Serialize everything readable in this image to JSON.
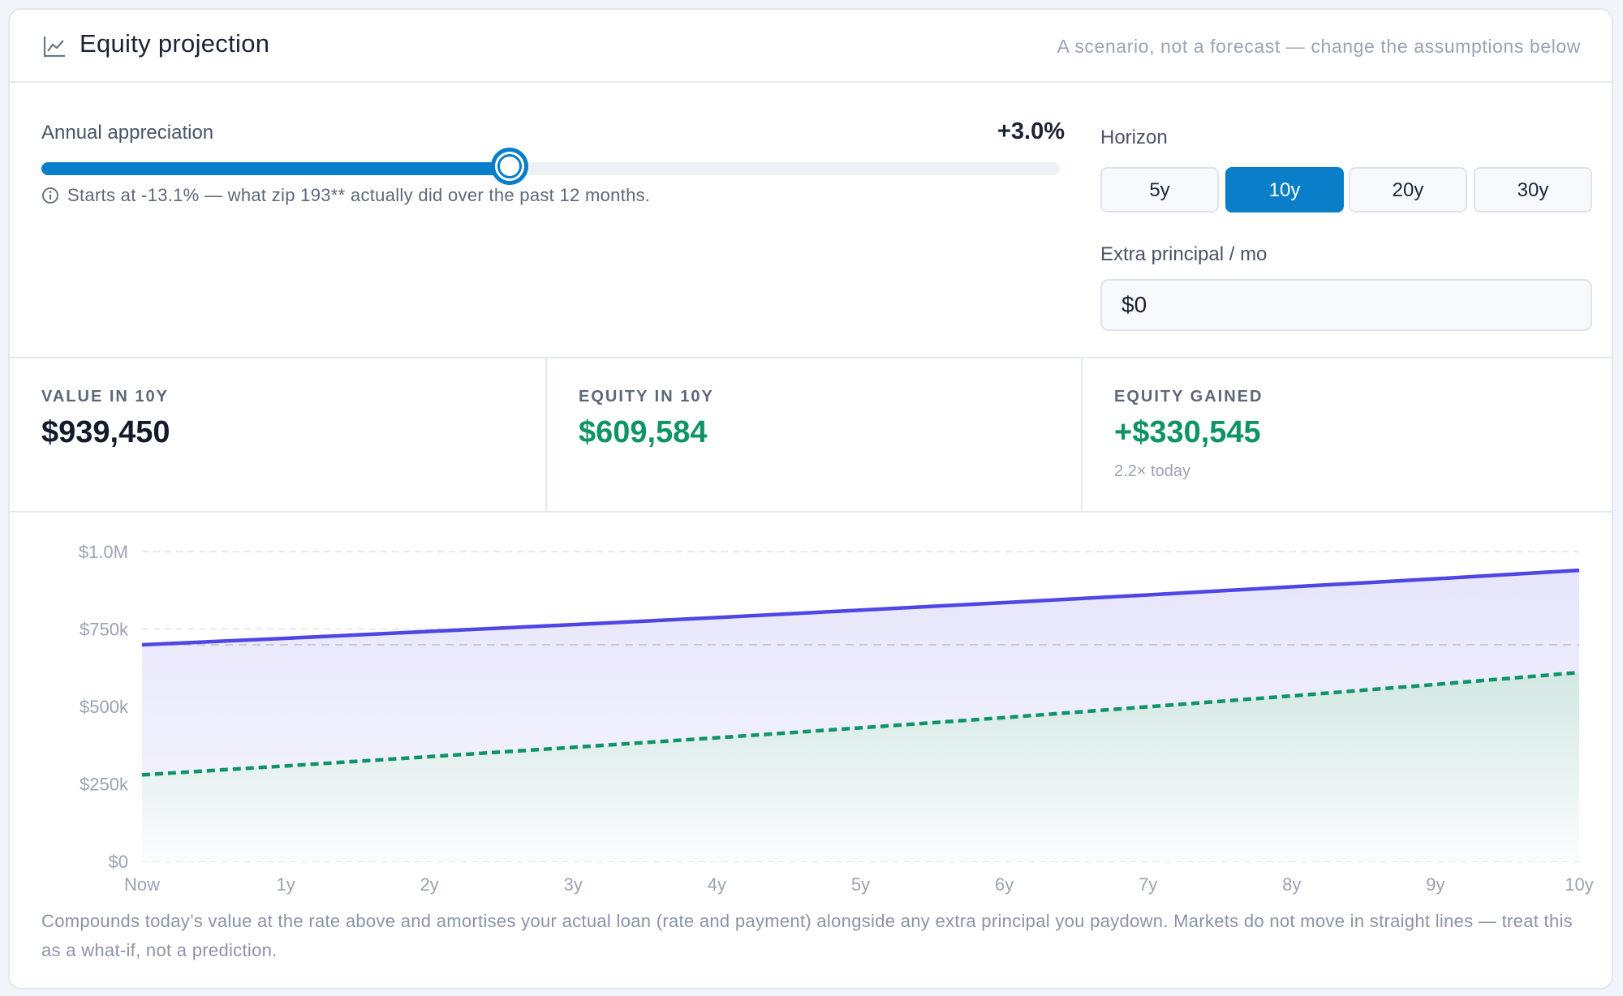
{
  "header": {
    "title": "Equity projection",
    "subtitle": "A scenario, not a forecast — change the assumptions below",
    "icon": "line-chart-icon"
  },
  "controls": {
    "appreciation": {
      "label": "Annual appreciation",
      "value_text": "+3.0%",
      "value": 3.0,
      "min": -20,
      "max": 30,
      "hint": "Starts at -13.1% — what zip 193** actually did over the past 12 months."
    },
    "horizon": {
      "label": "Horizon",
      "options": [
        "5y",
        "10y",
        "20y",
        "30y"
      ],
      "selected": "10y"
    },
    "extra_principal": {
      "label": "Extra principal / mo",
      "value": "$0"
    }
  },
  "stats": [
    {
      "label": "VALUE IN 10Y",
      "value": "$939,450",
      "color": "#141b2b"
    },
    {
      "label": "EQUITY IN 10Y",
      "value": "$609,584",
      "color": "#0e9466"
    },
    {
      "label": "EQUITY GAINED",
      "value": "+$330,545",
      "color": "#0e9466",
      "sub": "2.2× today"
    }
  ],
  "colors": {
    "accent": "#0a7ec8",
    "value_line": "#4f46e5",
    "equity_line": "#0e9466"
  },
  "chart_data": {
    "type": "area",
    "x": [
      "Now",
      "1y",
      "2y",
      "3y",
      "4y",
      "5y",
      "6y",
      "7y",
      "8y",
      "9y",
      "10y"
    ],
    "y_ticks": [
      "$0",
      "$250k",
      "$500k",
      "$750k",
      "$1.0M"
    ],
    "ylim": [
      0,
      1000000
    ],
    "reference_value": 699000,
    "series": [
      {
        "values": [
          699000,
          720000,
          742000,
          764000,
          787000,
          811000,
          835000,
          860000,
          886000,
          912000,
          939450
        ]
      },
      {
        "values": [
          279000,
          308000,
          338000,
          368000,
          399000,
          431000,
          464000,
          499000,
          534000,
          571000,
          609584
        ]
      }
    ]
  },
  "footnote": "Compounds today’s value at the rate above and amortises your actual loan (rate and payment) alongside any extra principal you paydown. Markets do not move in straight lines — treat this as a what-if, not a prediction."
}
